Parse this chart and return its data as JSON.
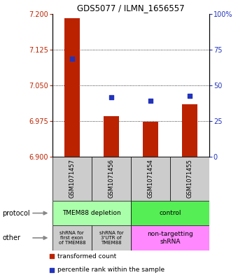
{
  "title": "GDS5077 / ILMN_1656557",
  "samples": [
    "GSM1071457",
    "GSM1071456",
    "GSM1071454",
    "GSM1071455"
  ],
  "bar_values": [
    7.19,
    6.985,
    6.974,
    7.01
  ],
  "bar_bottom": 6.9,
  "scatter_values": [
    7.105,
    7.025,
    7.018,
    7.027
  ],
  "ylim_left": [
    6.9,
    7.2
  ],
  "ylim_right": [
    0,
    100
  ],
  "yticks_left": [
    6.9,
    6.975,
    7.05,
    7.125,
    7.2
  ],
  "yticks_right": [
    0,
    25,
    50,
    75,
    100
  ],
  "bar_color": "#bb2200",
  "scatter_color": "#2233bb",
  "protocol_light_green": "#aaffaa",
  "protocol_bright_green": "#55ee55",
  "other_gray": "#cccccc",
  "other_magenta": "#ff88ff",
  "protocol_labels": [
    "TMEM88 depletion",
    "control"
  ],
  "other_labels_1a": "shRNA for\nfirst exon\nof TMEM88",
  "other_labels_1b": "shRNA for\n3'UTR of\nTMEM88",
  "other_label_2": "non-targetting\nshRNA",
  "legend_bar_label": "transformed count",
  "legend_scatter_label": "percentile rank within the sample",
  "protocol_row_label": "protocol",
  "other_row_label": "other"
}
